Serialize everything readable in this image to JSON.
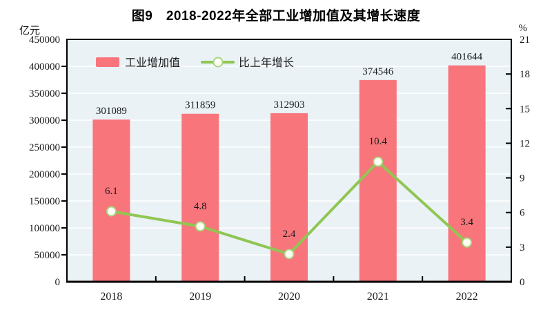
{
  "title": "图9　2018-2022年全部工业增加值及其增长速度",
  "colors": {
    "bar": "#F8757B",
    "line": "#90C653",
    "marker_fill": "#FFFFF4",
    "marker_stroke": "#A8D47E",
    "plot_bg": "#EAF2F6",
    "grid": "#FFFFFF",
    "axis": "#000000",
    "text": "#1A1A1A"
  },
  "chart_data": {
    "type": "bar+line",
    "title": "图9　2018-2022年全部工业增加值及其增长速度",
    "categories": [
      "2018",
      "2019",
      "2020",
      "2021",
      "2022"
    ],
    "series": [
      {
        "name": "工业增加值",
        "type": "bar",
        "axis": "left",
        "values": [
          301089,
          311859,
          312903,
          374546,
          401644
        ]
      },
      {
        "name": "比上年增长",
        "type": "line",
        "axis": "right",
        "values": [
          6.1,
          4.8,
          2.4,
          10.4,
          3.4
        ]
      }
    ],
    "left_axis": {
      "unit": "亿元",
      "min": 0,
      "max": 450000,
      "step": 50000,
      "tick_labels": [
        "0",
        "50000",
        "100000",
        "150000",
        "200000",
        "250000",
        "300000",
        "350000",
        "400000",
        "450000"
      ]
    },
    "right_axis": {
      "unit": "%",
      "min": 0,
      "max": 21,
      "step": 3,
      "tick_labels": [
        "0",
        "3",
        "6",
        "9",
        "12",
        "15",
        "18",
        "21"
      ]
    },
    "grid": "horizontal-white",
    "legend_position": "top-left-inside",
    "data_labels": true
  }
}
